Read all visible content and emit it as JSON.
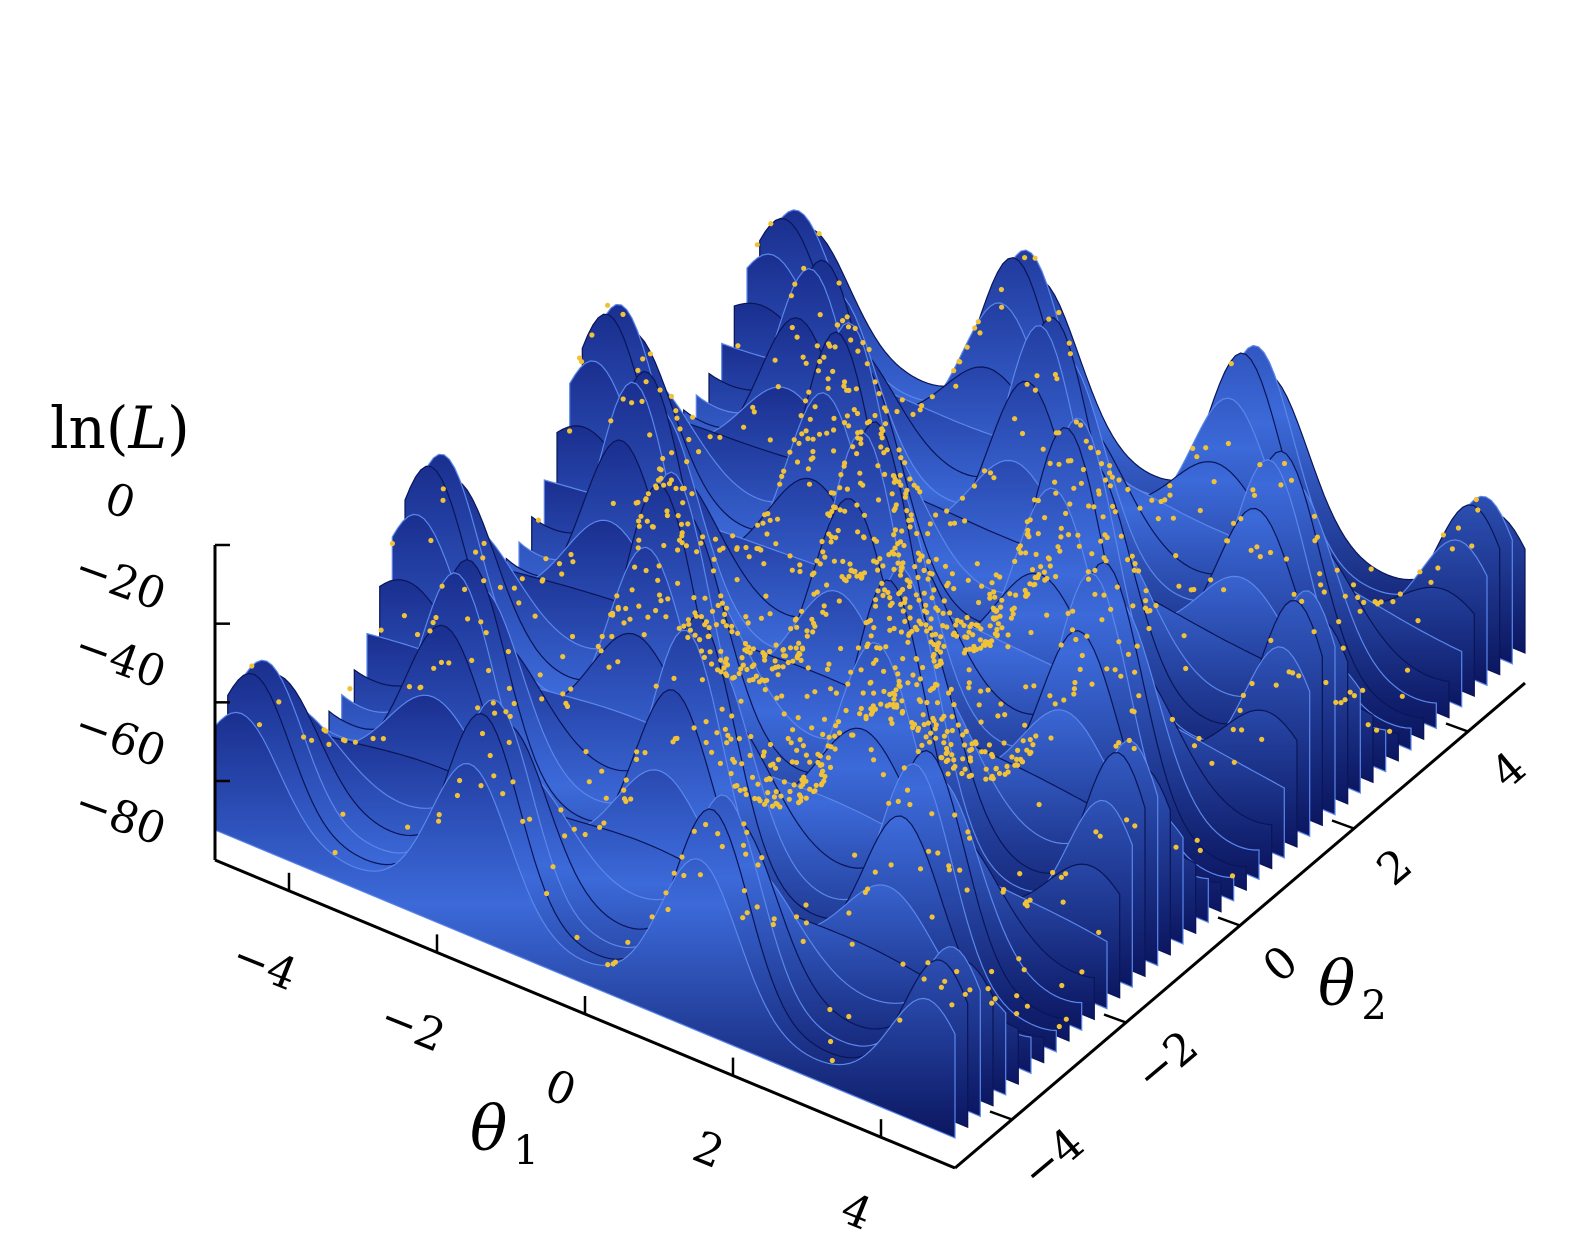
{
  "chart_data": {
    "type": "surface3d",
    "title": "",
    "z_label_prefix": "ln(",
    "z_label_var": "L",
    "z_label_suffix": ")",
    "x_label_var": "θ",
    "x_label_sub": "1",
    "y_label_var": "θ",
    "y_label_sub": "2",
    "x_range": [
      -5,
      5
    ],
    "y_range": [
      -5,
      5
    ],
    "z_range": [
      -80,
      0
    ],
    "x_ticks": [
      -4,
      -2,
      0,
      2,
      4
    ],
    "y_ticks": [
      -4,
      -2,
      0,
      2,
      4
    ],
    "z_ticks": [
      0,
      -20,
      -40,
      -60,
      -80
    ],
    "x_tick_labels": [
      "−4",
      "−2",
      "0",
      "2",
      "4"
    ],
    "y_tick_labels": [
      "−4",
      "−2",
      "0",
      "2",
      "4"
    ],
    "z_tick_labels": [
      "0",
      "−20",
      "−40",
      "−60",
      "−80"
    ],
    "surface": "egg-box likelihood: ln(L) ≈ -(2 + cos(θ1·π/... ) cos(θ2...))^5 style periodic peaks over [-5,5]²",
    "surface_color": "#2a4fc4",
    "point_color": "#f0c23a",
    "points_description": "posterior samples clustered on peaks, densest near center"
  }
}
